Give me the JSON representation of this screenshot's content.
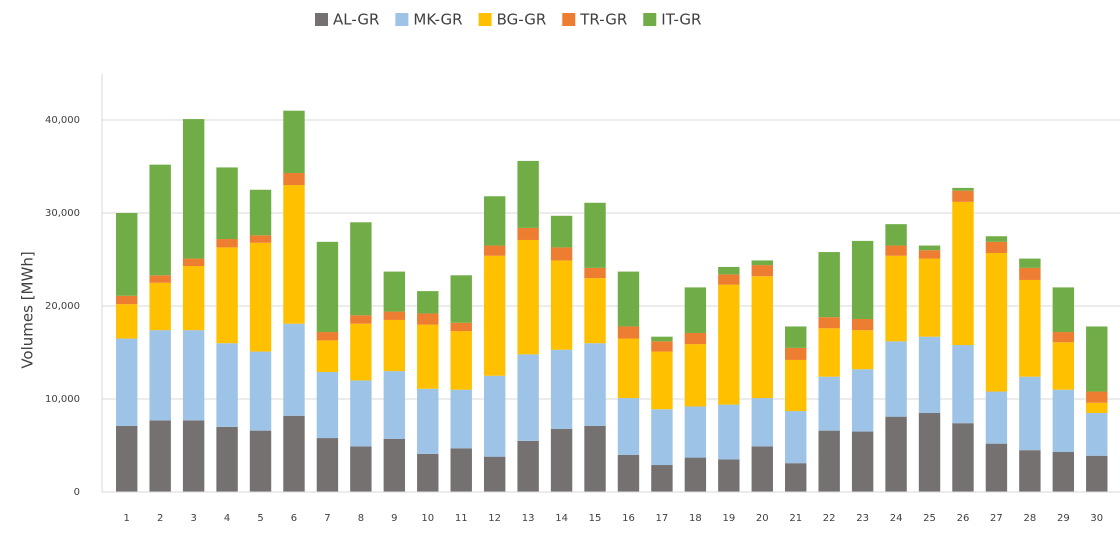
{
  "chart_data": {
    "type": "stacked_bar",
    "y_label": "Volumes [MWh]",
    "categories": [
      "1",
      "2",
      "3",
      "4",
      "5",
      "6",
      "7",
      "8",
      "9",
      "10",
      "11",
      "12",
      "13",
      "14",
      "15",
      "16",
      "17",
      "18",
      "19",
      "20",
      "21",
      "22",
      "23",
      "24",
      "25",
      "26",
      "27",
      "28",
      "29",
      "30"
    ],
    "series": [
      {
        "name": "AL-GR",
        "color": "#767171",
        "values": [
          7100,
          7700,
          7700,
          7000,
          6600,
          8200,
          5800,
          4900,
          5700,
          4100,
          4700,
          3800,
          5500,
          6800,
          7100,
          4000,
          2900,
          3700,
          3500,
          4900,
          3100,
          6600,
          6500,
          8100,
          8500,
          7400,
          5200,
          4500,
          4300,
          3900
        ]
      },
      {
        "name": "MK-GR",
        "color": "#9dc3e6",
        "values": [
          9400,
          9700,
          9700,
          9000,
          8500,
          9900,
          7100,
          7100,
          7300,
          7000,
          6300,
          8700,
          9300,
          8500,
          8900,
          6100,
          6000,
          5500,
          5900,
          5200,
          5600,
          5800,
          6700,
          8100,
          8200,
          8400,
          5600,
          7900,
          6700,
          4600
        ]
      },
      {
        "name": "BG-GR",
        "color": "#ffc000",
        "values": [
          3700,
          5100,
          6900,
          10300,
          11700,
          14900,
          3400,
          6100,
          5500,
          6900,
          6300,
          12900,
          12300,
          9600,
          7000,
          6400,
          6200,
          6700,
          12900,
          13100,
          5500,
          5200,
          4200,
          9200,
          8400,
          15400,
          14900,
          10400,
          5100,
          1100
        ]
      },
      {
        "name": "TR-GR",
        "color": "#ed7d31",
        "values": [
          900,
          800,
          800,
          900,
          800,
          1300,
          900,
          900,
          900,
          1200,
          900,
          1100,
          1300,
          1400,
          1100,
          1300,
          1100,
          1200,
          1100,
          1200,
          1300,
          1200,
          1200,
          1100,
          900,
          1200,
          1200,
          1300,
          1100,
          1200
        ]
      },
      {
        "name": "IT-GR",
        "color": "#70ad47",
        "values": [
          8900,
          11900,
          15000,
          7700,
          4900,
          6700,
          9700,
          10000,
          4300,
          2400,
          5100,
          5300,
          7200,
          3400,
          7000,
          5900,
          500,
          4900,
          800,
          500,
          2300,
          7000,
          8400,
          2300,
          500,
          300,
          600,
          1000,
          4800,
          7000
        ]
      }
    ],
    "ylim": [
      0,
      45000
    ],
    "yticks": [
      0,
      {
        "value": 10000,
        "label": "10,000"
      },
      {
        "value": 20000,
        "label": "20,000"
      },
      {
        "value": 30000,
        "label": "30,000"
      },
      {
        "value": 40000,
        "label": "40,000"
      }
    ],
    "grid": true,
    "legend": "top"
  }
}
